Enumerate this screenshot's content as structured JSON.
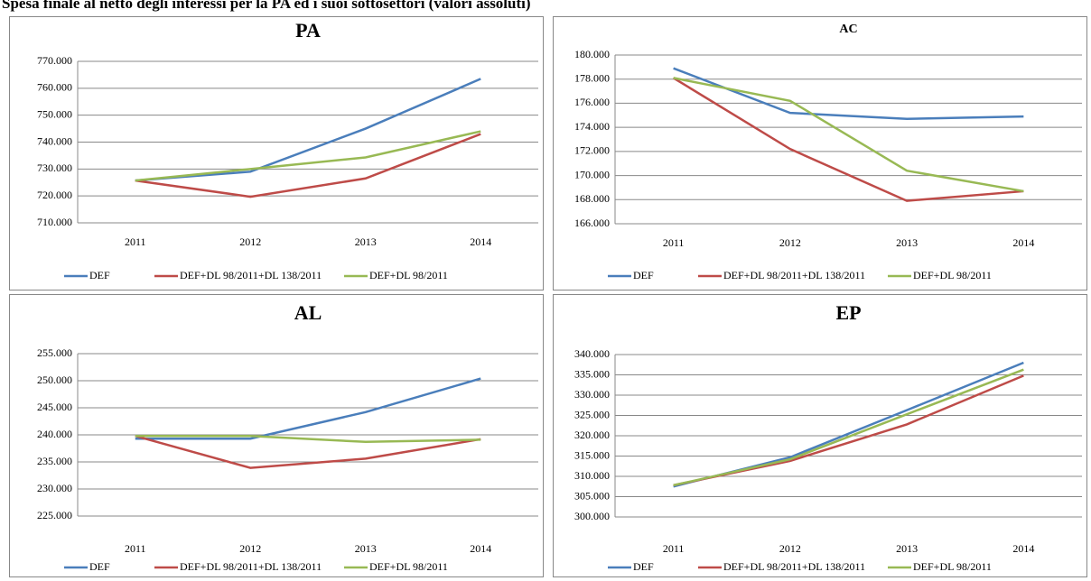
{
  "title": "Spesa finale al netto degli interessi per la PA ed i suoi sottosettori (valori assoluti)",
  "chart_data": [
    {
      "type": "line",
      "title": "PA",
      "categories": [
        "2011",
        "2012",
        "2013",
        "2014"
      ],
      "series": [
        {
          "name": "DEF",
          "color": "#4a7ebb",
          "values": [
            725700,
            729000,
            745000,
            763500
          ]
        },
        {
          "name": "DEF+DL 98/2011+DL 138/2011",
          "color": "#be4b48",
          "values": [
            725700,
            719700,
            726500,
            743000
          ]
        },
        {
          "name": "DEF+DL 98/2011",
          "color": "#98b954",
          "values": [
            725700,
            730000,
            734300,
            744000
          ]
        }
      ],
      "ylim": [
        710000,
        770000
      ],
      "yticks": [
        {
          "value": 710000,
          "label": "710.000"
        },
        {
          "value": 720000,
          "label": "720.000"
        },
        {
          "value": 730000,
          "label": "730.000"
        },
        {
          "value": 740000,
          "label": "740.000"
        },
        {
          "value": 750000,
          "label": "750.000"
        },
        {
          "value": 760000,
          "label": "760.000"
        },
        {
          "value": 770000,
          "label": "770.000"
        }
      ],
      "grid": true,
      "legend": "bottom"
    },
    {
      "type": "line",
      "title": "AC",
      "categories": [
        "2011",
        "2012",
        "2013",
        "2014"
      ],
      "series": [
        {
          "name": "DEF",
          "color": "#4a7ebb",
          "values": [
            178900,
            175200,
            174700,
            174900
          ]
        },
        {
          "name": "DEF+DL 98/2011+DL 138/2011",
          "color": "#be4b48",
          "values": [
            178100,
            172200,
            167900,
            168700
          ]
        },
        {
          "name": "DEF+DL 98/2011",
          "color": "#98b954",
          "values": [
            178100,
            176200,
            170400,
            168700
          ]
        }
      ],
      "ylim": [
        166000,
        180000
      ],
      "yticks": [
        {
          "value": 166000,
          "label": "166.000"
        },
        {
          "value": 168000,
          "label": "168.000"
        },
        {
          "value": 170000,
          "label": "170.000"
        },
        {
          "value": 172000,
          "label": "172.000"
        },
        {
          "value": 174000,
          "label": "174.000"
        },
        {
          "value": 176000,
          "label": "176.000"
        },
        {
          "value": 178000,
          "label": "178.000"
        },
        {
          "value": 180000,
          "label": "180.000"
        }
      ],
      "grid": true,
      "legend": "bottom"
    },
    {
      "type": "line",
      "title": "AL",
      "categories": [
        "2011",
        "2012",
        "2013",
        "2014"
      ],
      "series": [
        {
          "name": "DEF",
          "color": "#4a7ebb",
          "values": [
            239300,
            239300,
            244200,
            250400
          ]
        },
        {
          "name": "DEF+DL 98/2011+DL 138/2011",
          "color": "#be4b48",
          "values": [
            239800,
            233900,
            235600,
            239200
          ]
        },
        {
          "name": "DEF+DL 98/2011",
          "color": "#98b954",
          "values": [
            239800,
            239800,
            238700,
            239100
          ]
        }
      ],
      "ylim": [
        225000,
        255000
      ],
      "yticks": [
        {
          "value": 225000,
          "label": "225.000"
        },
        {
          "value": 230000,
          "label": "230.000"
        },
        {
          "value": 235000,
          "label": "235.000"
        },
        {
          "value": 240000,
          "label": "240.000"
        },
        {
          "value": 245000,
          "label": "245.000"
        },
        {
          "value": 250000,
          "label": "250.000"
        },
        {
          "value": 255000,
          "label": "255.000"
        }
      ],
      "grid": true,
      "legend": "bottom"
    },
    {
      "type": "line",
      "title": "EP",
      "categories": [
        "2011",
        "2012",
        "2013",
        "2014"
      ],
      "series": [
        {
          "name": "DEF",
          "color": "#4a7ebb",
          "values": [
            307500,
            314700,
            326300,
            338000
          ]
        },
        {
          "name": "DEF+DL 98/2011+DL 138/2011",
          "color": "#be4b48",
          "values": [
            307800,
            313800,
            322800,
            334800
          ]
        },
        {
          "name": "DEF+DL 98/2011",
          "color": "#98b954",
          "values": [
            307800,
            314200,
            325300,
            336300
          ]
        }
      ],
      "ylim": [
        300000,
        340000
      ],
      "yticks": [
        {
          "value": 300000,
          "label": "300.000"
        },
        {
          "value": 305000,
          "label": "305.000"
        },
        {
          "value": 310000,
          "label": "310.000"
        },
        {
          "value": 315000,
          "label": "315.000"
        },
        {
          "value": 320000,
          "label": "320.000"
        },
        {
          "value": 325000,
          "label": "325.000"
        },
        {
          "value": 330000,
          "label": "330.000"
        },
        {
          "value": 335000,
          "label": "335.000"
        },
        {
          "value": 340000,
          "label": "340.000"
        }
      ],
      "grid": true,
      "legend": "bottom"
    }
  ]
}
